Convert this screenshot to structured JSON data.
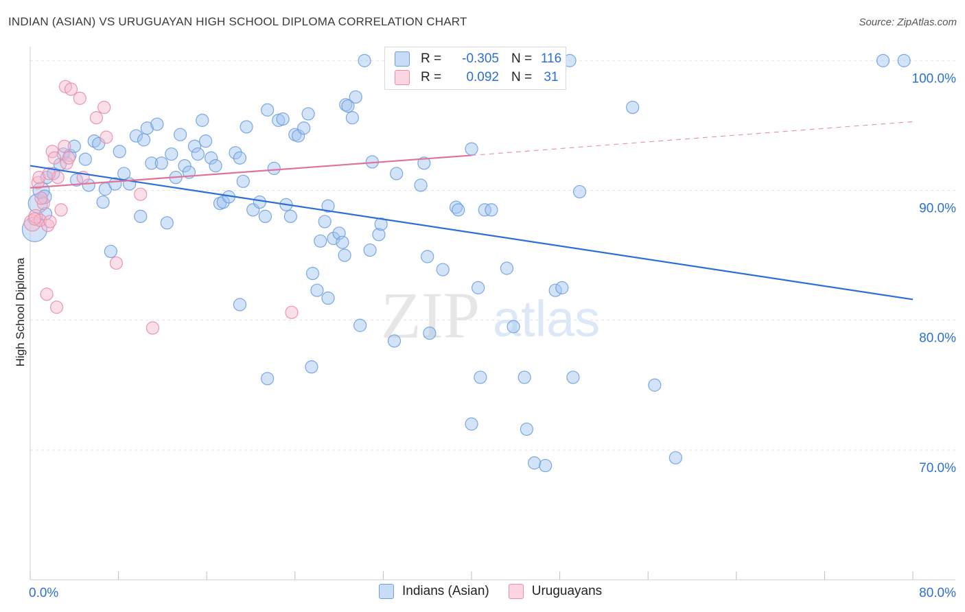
{
  "title": "INDIAN (ASIAN) VS URUGUAYAN HIGH SCHOOL DIPLOMA CORRELATION CHART",
  "source": "Source: ZipAtlas.com",
  "watermark": {
    "zip": "ZIP",
    "atlas": "atlas"
  },
  "legend": {
    "rows": [
      {
        "r_label": "R =",
        "r_value": "-0.305",
        "n_label": "N =",
        "n_value": "116",
        "color": "#9fc3ef",
        "border": "#6a9fe0"
      },
      {
        "r_label": "R =",
        "r_value": "0.092",
        "n_label": "N =",
        "n_value": "31",
        "color": "#f7b9cc",
        "border": "#e98bab"
      }
    ]
  },
  "bottom_legend": [
    {
      "label": "Indians (Asian)",
      "color": "#9fc3ef",
      "border": "#6a9fe0"
    },
    {
      "label": "Uruguayans",
      "color": "#f7b9cc",
      "border": "#e98bab"
    }
  ],
  "chart_data": {
    "type": "scatter",
    "title": "INDIAN (ASIAN) VS URUGUAYAN HIGH SCHOOL DIPLOMA CORRELATION CHART",
    "xlabel": "",
    "ylabel": "High School Diploma",
    "xlim": [
      0,
      80
    ],
    "ylim": [
      60,
      101.5
    ],
    "x_tick_labels": [
      "0.0%",
      "80.0%"
    ],
    "y_ticks": [
      70,
      80,
      90,
      100
    ],
    "y_tick_labels": [
      "70.0%",
      "80.0%",
      "90.0%",
      "100.0%"
    ],
    "grid": true,
    "series": [
      {
        "name": "Indians (Asian)",
        "color": "#6a9fe0",
        "fill": "#9fc3ef",
        "trend": {
          "x": [
            0,
            80
          ],
          "y": [
            91.9,
            81.6
          ],
          "color": "#2b6fd6"
        },
        "points": [
          [
            0.4,
            87.0,
            18
          ],
          [
            0.7,
            89.0,
            14
          ],
          [
            1.0,
            90.0,
            12
          ],
          [
            1.3,
            89.5,
            10
          ],
          [
            1.4,
            88.2,
            9
          ],
          [
            1.5,
            91.0,
            9
          ],
          [
            2.1,
            91.3,
            9
          ],
          [
            2.7,
            92.0,
            9
          ],
          [
            3.0,
            92.8,
            9
          ],
          [
            3.6,
            92.7,
            9
          ],
          [
            4.0,
            93.4,
            9
          ],
          [
            4.2,
            90.8,
            9
          ],
          [
            5.0,
            92.4,
            9
          ],
          [
            5.3,
            90.4,
            9
          ],
          [
            5.8,
            93.8,
            9
          ],
          [
            6.2,
            93.6,
            9
          ],
          [
            6.6,
            89.1,
            9
          ],
          [
            6.8,
            90.1,
            9
          ],
          [
            7.3,
            85.3,
            9
          ],
          [
            7.7,
            90.5,
            9
          ],
          [
            8.1,
            93.0,
            9
          ],
          [
            8.5,
            91.3,
            9
          ],
          [
            9.0,
            90.5,
            9
          ],
          [
            9.6,
            94.2,
            9
          ],
          [
            10.0,
            88.0,
            9
          ],
          [
            10.3,
            93.9,
            9
          ],
          [
            10.6,
            94.8,
            9
          ],
          [
            11.0,
            92.1,
            9
          ],
          [
            11.5,
            95.1,
            9
          ],
          [
            11.9,
            92.1,
            9
          ],
          [
            12.4,
            87.5,
            9
          ],
          [
            12.8,
            92.8,
            9
          ],
          [
            13.2,
            91.0,
            9
          ],
          [
            13.6,
            94.3,
            9
          ],
          [
            14.0,
            91.9,
            9
          ],
          [
            14.4,
            91.4,
            9
          ],
          [
            14.9,
            93.4,
            9
          ],
          [
            15.2,
            92.8,
            9
          ],
          [
            15.6,
            95.4,
            9
          ],
          [
            15.9,
            93.8,
            9
          ],
          [
            16.4,
            92.5,
            9
          ],
          [
            16.8,
            91.9,
            9
          ],
          [
            17.2,
            89.0,
            9
          ],
          [
            17.5,
            89.1,
            9
          ],
          [
            18.0,
            89.5,
            9
          ],
          [
            18.6,
            92.9,
            9
          ],
          [
            19.0,
            92.5,
            9
          ],
          [
            19.3,
            90.7,
            9
          ],
          [
            19.6,
            94.9,
            9
          ],
          [
            20.2,
            88.5,
            9
          ],
          [
            20.8,
            89.1,
            9
          ],
          [
            21.3,
            88.0,
            9
          ],
          [
            21.5,
            96.2,
            9
          ],
          [
            22.1,
            91.7,
            9
          ],
          [
            22.5,
            95.4,
            9
          ],
          [
            22.9,
            95.5,
            9
          ],
          [
            23.2,
            88.9,
            9
          ],
          [
            23.6,
            88.0,
            9
          ],
          [
            24.0,
            94.3,
            9
          ],
          [
            24.3,
            94.2,
            9
          ],
          [
            24.8,
            94.8,
            9
          ],
          [
            25.2,
            95.9,
            9
          ],
          [
            25.6,
            83.6,
            9
          ],
          [
            26.0,
            82.3,
            9
          ],
          [
            26.3,
            86.1,
            9
          ],
          [
            26.7,
            87.6,
            9
          ],
          [
            27.0,
            88.8,
            9
          ],
          [
            27.5,
            86.3,
            9
          ],
          [
            28.0,
            86.7,
            9
          ],
          [
            28.3,
            86.0,
            9
          ],
          [
            28.6,
            96.6,
            9
          ],
          [
            28.8,
            96.5,
            9
          ],
          [
            29.2,
            95.6,
            9
          ],
          [
            29.5,
            97.2,
            9
          ],
          [
            29.9,
            79.6,
            9
          ],
          [
            30.3,
            100.0,
            9
          ],
          [
            30.8,
            85.4,
            9
          ],
          [
            31.0,
            92.2,
            9
          ],
          [
            31.6,
            86.6,
            9
          ],
          [
            31.8,
            87.4,
            9
          ],
          [
            33.0,
            78.4,
            9
          ],
          [
            33.2,
            91.3,
            9
          ],
          [
            35.4,
            90.4,
            9
          ],
          [
            35.7,
            92.1,
            9
          ],
          [
            36.0,
            84.9,
            9
          ],
          [
            36.2,
            79.0,
            9
          ],
          [
            37.4,
            83.9,
            9
          ],
          [
            38.6,
            88.7,
            9
          ],
          [
            38.8,
            88.5,
            9
          ],
          [
            40.0,
            93.2,
            9
          ],
          [
            40.6,
            82.5,
            9
          ],
          [
            40.8,
            75.6,
            9
          ],
          [
            40.0,
            72.0,
            9
          ],
          [
            41.2,
            88.5,
            9
          ],
          [
            41.8,
            88.5,
            9
          ],
          [
            43.2,
            84.0,
            9
          ],
          [
            43.8,
            79.5,
            9
          ],
          [
            44.8,
            75.6,
            9
          ],
          [
            45.7,
            69.0,
            9
          ],
          [
            46.7,
            68.8,
            9
          ],
          [
            45.0,
            71.6,
            9
          ],
          [
            47.6,
            82.3,
            9
          ],
          [
            48.2,
            82.5,
            9
          ],
          [
            49.2,
            75.6,
            9
          ],
          [
            49.8,
            89.9,
            9
          ],
          [
            48.9,
            100.0,
            9
          ],
          [
            54.6,
            96.4,
            9
          ],
          [
            56.6,
            75.0,
            9
          ],
          [
            58.5,
            69.4,
            9
          ],
          [
            77.3,
            100.0,
            9
          ],
          [
            79.2,
            100.0,
            9
          ],
          [
            21.5,
            75.5,
            9
          ],
          [
            25.5,
            76.4,
            9
          ],
          [
            19.0,
            81.2,
            9
          ],
          [
            27.0,
            81.7,
            9
          ],
          [
            28.5,
            85.0,
            9
          ]
        ]
      },
      {
        "name": "Uruguayans",
        "color": "#e98bab",
        "fill": "#f7b9cc",
        "trend": {
          "x": [
            0,
            40
          ],
          "y": [
            90.2,
            92.7
          ],
          "dash_to": [
            80,
            95.3
          ],
          "color": "#e0729a"
        },
        "points": [
          [
            0.2,
            87.5,
            12
          ],
          [
            0.5,
            88.0,
            10
          ],
          [
            0.9,
            87.7,
            9
          ],
          [
            0.7,
            90.6,
            9
          ],
          [
            0.8,
            91.0,
            9
          ],
          [
            1.2,
            89.0,
            9
          ],
          [
            1.6,
            87.3,
            9
          ],
          [
            1.8,
            87.6,
            9
          ],
          [
            2.0,
            93.0,
            9
          ],
          [
            2.2,
            92.5,
            9
          ],
          [
            2.5,
            91.0,
            9
          ],
          [
            2.8,
            88.5,
            9
          ],
          [
            3.1,
            93.4,
            9
          ],
          [
            3.3,
            92.1,
            9
          ],
          [
            3.5,
            92.5,
            9
          ],
          [
            3.2,
            98.0,
            9
          ],
          [
            3.7,
            97.8,
            9
          ],
          [
            4.5,
            97.1,
            9
          ],
          [
            4.8,
            91.0,
            9
          ],
          [
            6.0,
            95.6,
            9
          ],
          [
            6.7,
            96.4,
            9
          ],
          [
            6.9,
            94.1,
            9
          ],
          [
            7.8,
            84.4,
            9
          ],
          [
            10.0,
            89.7,
            9
          ],
          [
            11.1,
            79.4,
            9
          ],
          [
            1.5,
            82.0,
            9
          ],
          [
            2.4,
            81.0,
            9
          ],
          [
            23.7,
            80.6,
            9
          ],
          [
            1.0,
            89.4,
            9
          ],
          [
            0.4,
            87.8,
            9
          ],
          [
            1.7,
            91.3,
            9
          ]
        ]
      }
    ]
  }
}
